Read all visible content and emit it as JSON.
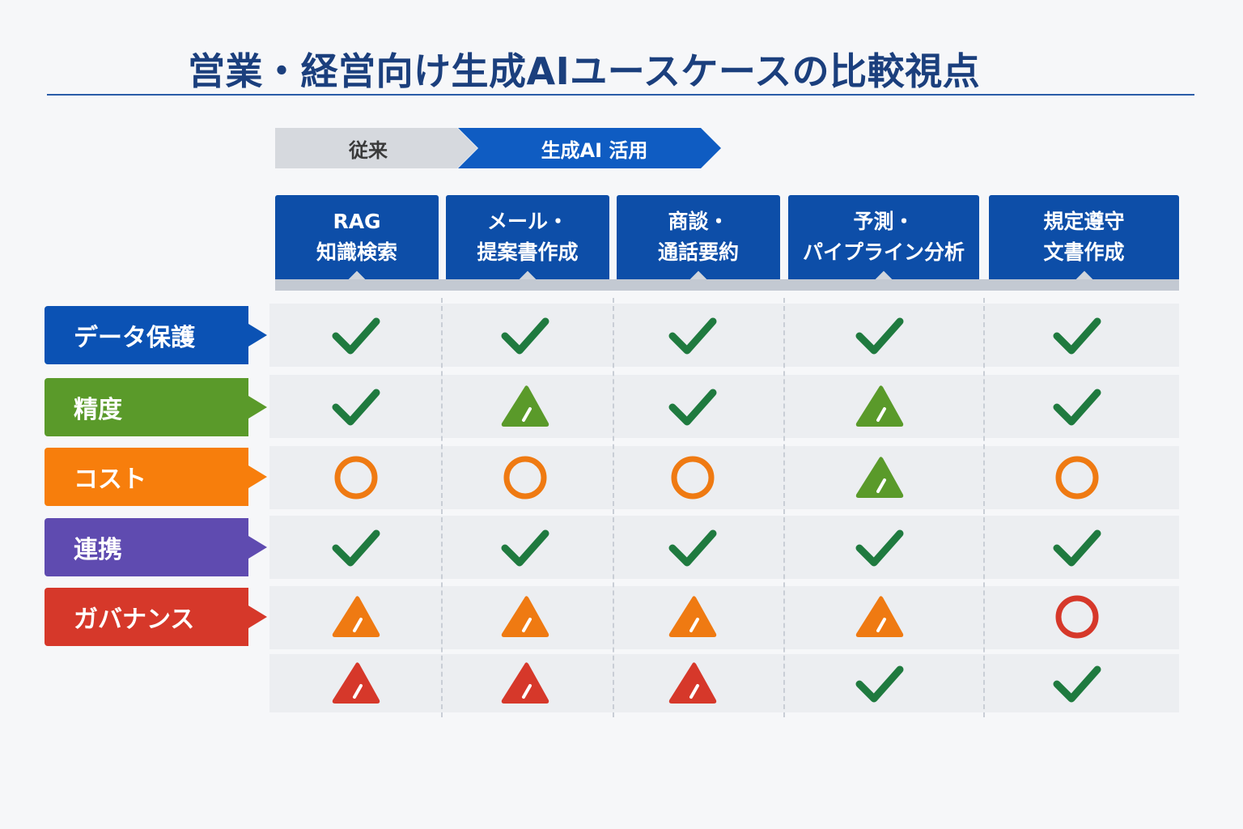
{
  "title": "営業・経営向け生成AIユースケースの比較視点",
  "phases": {
    "old": "従来",
    "new": "生成AI 活用"
  },
  "columns": [
    {
      "line1": "RAG",
      "line2": "知識検索"
    },
    {
      "line1": "メール・",
      "line2": "提案書作成"
    },
    {
      "line1": "商談・",
      "line2": "通話要約"
    },
    {
      "line1": "予測・",
      "line2": "パイプライン分析"
    },
    {
      "line1": "規定遵守",
      "line2": "文書作成"
    }
  ],
  "rows": [
    {
      "label": "データ保護",
      "color": "#0b52b4"
    },
    {
      "label": "精度",
      "color": "#5a9a2a"
    },
    {
      "label": "コスト",
      "color": "#f77e0c"
    },
    {
      "label": "連携",
      "color": "#5f4bb0"
    },
    {
      "label": "ガバナンス",
      "color": "#d6382a"
    },
    {
      "label": "",
      "color": ""
    }
  ],
  "symbol_legend": {
    "check": "#1f7a3f",
    "triangle_green": "#5a9a2a",
    "triangle_orange": "#ef7a12",
    "triangle_red": "#d6382a",
    "circle_orange": "#ef7a12",
    "circle_red": "#d6382a"
  },
  "matrix": [
    [
      "check",
      "check",
      "check",
      "check",
      "check"
    ],
    [
      "check",
      "triangle_green",
      "check",
      "triangle_green",
      "check"
    ],
    [
      "circle_orange",
      "circle_orange",
      "circle_orange",
      "triangle_green",
      "circle_orange"
    ],
    [
      "check",
      "check",
      "check",
      "check",
      "check"
    ],
    [
      "triangle_orange",
      "triangle_orange",
      "triangle_orange",
      "triangle_orange",
      "circle_red"
    ],
    [
      "triangle_red",
      "triangle_red",
      "triangle_red",
      "check",
      "check"
    ]
  ]
}
